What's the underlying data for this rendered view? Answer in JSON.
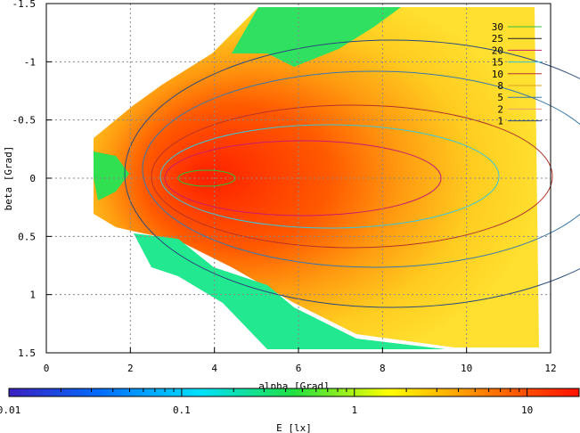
{
  "chart_data": {
    "type": "heatmap",
    "xlabel": "alpha [Grad]",
    "ylabel": "beta [Grad]",
    "xlim": [
      0,
      12
    ],
    "ylim": [
      1.5,
      -1.5
    ],
    "x_ticks": [
      "0",
      "2",
      "4",
      "6",
      "8",
      "10",
      "12"
    ],
    "y_ticks": [
      "-1.5",
      "-1",
      "-0.5",
      "0",
      "0.5",
      "1",
      "1.5"
    ],
    "grid": true,
    "contour_levels": [
      {
        "label": "30",
        "color": "#2fbf3a"
      },
      {
        "label": "25",
        "color": "#1f1f1f"
      },
      {
        "label": "20",
        "color": "#c81c6c"
      },
      {
        "label": "15",
        "color": "#39c6d6"
      },
      {
        "label": "10",
        "color": "#b4342a"
      },
      {
        "label": "8",
        "color": "#e0a020"
      },
      {
        "label": "5",
        "color": "#3a78a8"
      },
      {
        "label": "2",
        "color": "#e8a070"
      },
      {
        "label": "1",
        "color": "#2a4a7a"
      }
    ],
    "legend_position": "top-right",
    "colorbar": {
      "label": "E [lx]",
      "scale": "log",
      "range": [
        0.01,
        20
      ],
      "ticks": [
        "0.01",
        "0.1",
        "1",
        "10"
      ],
      "colors": [
        "#3a20c0",
        "#0070ff",
        "#00e0ff",
        "#20e040",
        "#ffff00",
        "#ff8000",
        "#ff1000"
      ]
    },
    "field": {
      "peak_value": 30,
      "peak_alpha": 4.0,
      "peak_beta": 0.0,
      "alpha_range": [
        1.2,
        11.7
      ]
    }
  }
}
